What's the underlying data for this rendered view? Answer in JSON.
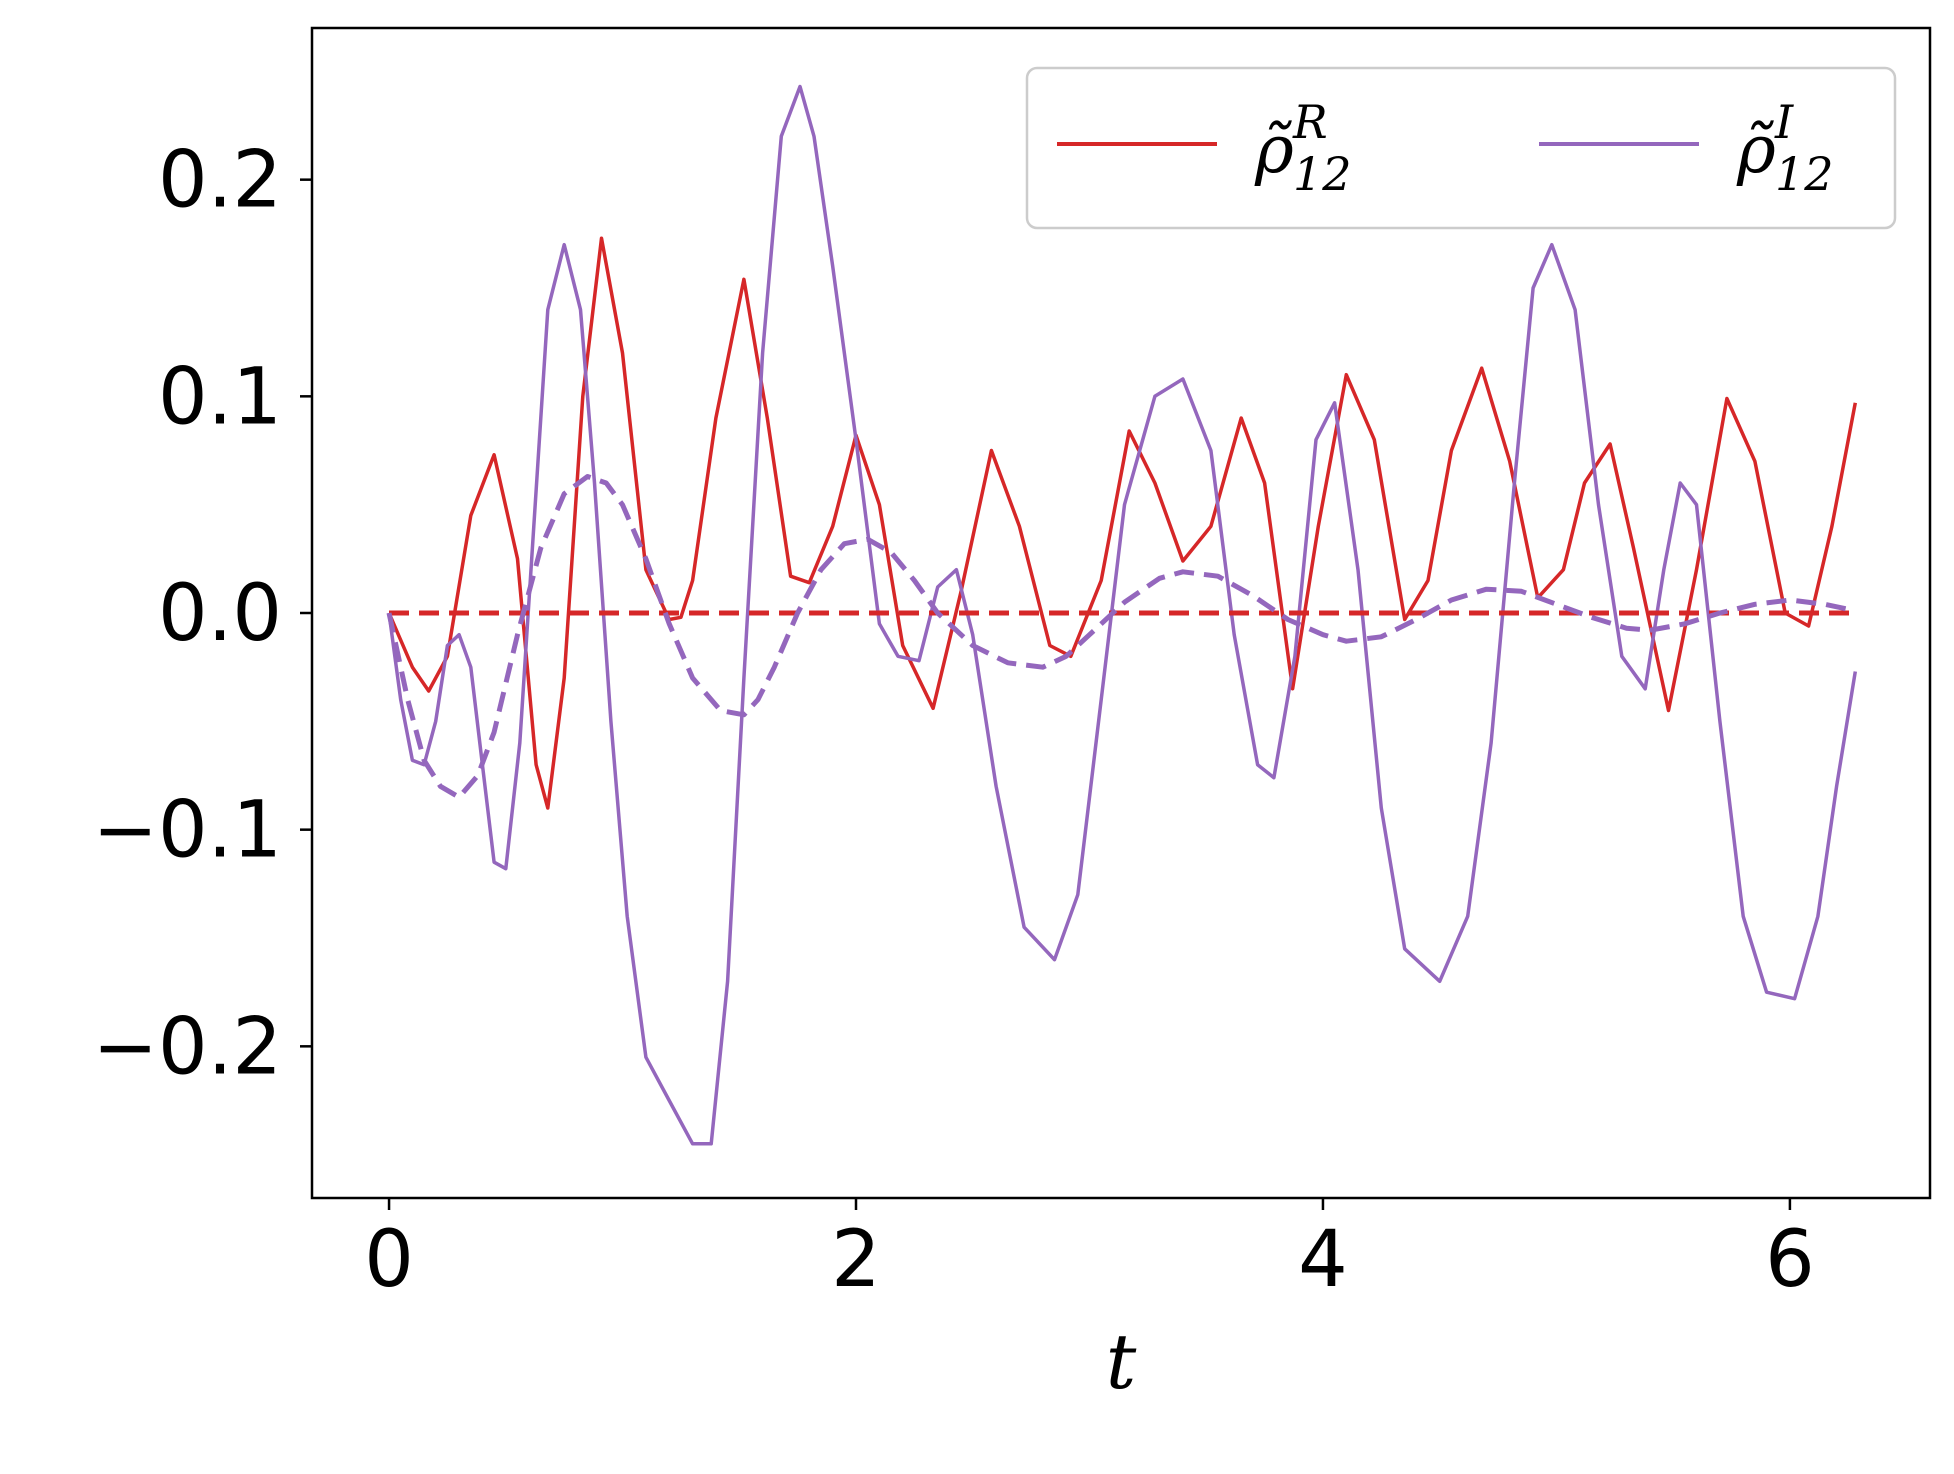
{
  "chart_data": {
    "type": "line",
    "title": "",
    "xlabel": "t",
    "ylabel": "",
    "xlim": [
      -0.33,
      6.6
    ],
    "ylim": [
      -0.27,
      0.27
    ],
    "xticks": [
      0,
      2,
      4,
      6
    ],
    "xtick_labels": [
      "0",
      "2",
      "4",
      "6"
    ],
    "yticks": [
      -0.2,
      -0.1,
      0.0,
      0.1,
      0.2
    ],
    "ytick_labels": [
      "−0.2",
      "−0.1",
      "0.0",
      "0.1",
      "0.2"
    ],
    "grid": false,
    "legend": {
      "position": "top-right",
      "columns": 2,
      "entries": [
        {
          "symbol": "ρ̃",
          "sup": "R",
          "sub": "12",
          "color": "#d62728"
        },
        {
          "symbol": "ρ̃",
          "sup": "I",
          "sub": "12",
          "color": "#9467bd"
        }
      ]
    },
    "series": [
      {
        "legend_index": 0,
        "color": "#d62728",
        "style": "solid",
        "x": [
          0,
          0.1,
          0.17,
          0.25,
          0.35,
          0.45,
          0.55,
          0.63,
          0.68,
          0.75,
          0.83,
          0.91,
          1.0,
          1.1,
          1.2,
          1.25,
          1.3,
          1.4,
          1.52,
          1.62,
          1.72,
          1.8,
          1.9,
          2.0,
          2.1,
          2.2,
          2.33,
          2.45,
          2.58,
          2.7,
          2.83,
          2.92,
          3.05,
          3.17,
          3.28,
          3.4,
          3.52,
          3.65,
          3.75,
          3.87,
          3.98,
          4.1,
          4.22,
          4.35,
          4.45,
          4.55,
          4.68,
          4.8,
          4.92,
          5.03,
          5.12,
          5.23,
          5.33,
          5.48,
          5.6,
          5.73,
          5.85,
          5.98,
          6.08,
          6.18,
          6.28
        ],
        "y": [
          0.0,
          -0.025,
          -0.036,
          -0.02,
          0.045,
          0.073,
          0.025,
          -0.07,
          -0.09,
          -0.03,
          0.1,
          0.173,
          0.12,
          0.02,
          -0.003,
          -0.002,
          0.015,
          0.09,
          0.154,
          0.09,
          0.017,
          0.014,
          0.04,
          0.082,
          0.05,
          -0.015,
          -0.044,
          0.01,
          0.075,
          0.04,
          -0.015,
          -0.02,
          0.015,
          0.084,
          0.06,
          0.024,
          0.04,
          0.09,
          0.06,
          -0.035,
          0.04,
          0.11,
          0.08,
          -0.003,
          0.015,
          0.075,
          0.113,
          0.07,
          0.007,
          0.02,
          0.06,
          0.078,
          0.03,
          -0.045,
          0.02,
          0.099,
          0.07,
          0.0,
          -0.006,
          0.04,
          0.097
        ]
      },
      {
        "legend_index": 1,
        "color": "#9467bd",
        "style": "solid",
        "x": [
          0,
          0.05,
          0.1,
          0.15,
          0.2,
          0.25,
          0.3,
          0.35,
          0.4,
          0.45,
          0.5,
          0.56,
          0.62,
          0.68,
          0.75,
          0.82,
          0.88,
          0.95,
          1.02,
          1.1,
          1.2,
          1.3,
          1.38,
          1.45,
          1.52,
          1.6,
          1.68,
          1.76,
          1.82,
          1.9,
          2.0,
          2.1,
          2.18,
          2.27,
          2.35,
          2.43,
          2.5,
          2.6,
          2.72,
          2.85,
          2.95,
          3.05,
          3.15,
          3.28,
          3.4,
          3.52,
          3.62,
          3.72,
          3.79,
          3.88,
          3.97,
          4.05,
          4.15,
          4.25,
          4.35,
          4.5,
          4.62,
          4.72,
          4.82,
          4.9,
          4.98,
          5.08,
          5.18,
          5.28,
          5.38,
          5.46,
          5.53,
          5.6,
          5.7,
          5.8,
          5.9,
          6.02,
          6.12,
          6.2,
          6.28
        ],
        "y": [
          0.0,
          -0.04,
          -0.068,
          -0.07,
          -0.05,
          -0.015,
          -0.01,
          -0.025,
          -0.07,
          -0.115,
          -0.118,
          -0.06,
          0.04,
          0.14,
          0.17,
          0.14,
          0.06,
          -0.05,
          -0.14,
          -0.205,
          -0.225,
          -0.245,
          -0.245,
          -0.17,
          -0.03,
          0.12,
          0.22,
          0.243,
          0.22,
          0.16,
          0.08,
          -0.005,
          -0.02,
          -0.022,
          0.012,
          0.02,
          -0.01,
          -0.08,
          -0.145,
          -0.16,
          -0.13,
          -0.04,
          0.05,
          0.1,
          0.108,
          0.075,
          -0.01,
          -0.07,
          -0.076,
          -0.02,
          0.08,
          0.097,
          0.02,
          -0.09,
          -0.155,
          -0.17,
          -0.14,
          -0.06,
          0.06,
          0.15,
          0.17,
          0.14,
          0.05,
          -0.02,
          -0.035,
          0.02,
          0.06,
          0.05,
          -0.05,
          -0.14,
          -0.175,
          -0.178,
          -0.14,
          -0.08,
          -0.027
        ]
      },
      {
        "legend_index": 0,
        "color": "#d62728",
        "style": "dashed",
        "x": [
          0,
          6.28
        ],
        "y": [
          0.0,
          0.0
        ]
      },
      {
        "legend_index": 1,
        "color": "#9467bd",
        "style": "dashed",
        "x": [
          0,
          0.08,
          0.15,
          0.22,
          0.3,
          0.38,
          0.45,
          0.55,
          0.65,
          0.75,
          0.85,
          0.93,
          1.0,
          1.1,
          1.2,
          1.3,
          1.42,
          1.52,
          1.58,
          1.65,
          1.75,
          1.85,
          1.95,
          2.05,
          2.15,
          2.25,
          2.35,
          2.5,
          2.65,
          2.8,
          2.9,
          3.0,
          3.15,
          3.3,
          3.4,
          3.55,
          3.7,
          3.85,
          4.0,
          4.1,
          4.25,
          4.4,
          4.55,
          4.7,
          4.85,
          5.0,
          5.15,
          5.3,
          5.4,
          5.55,
          5.7,
          5.85,
          6.0,
          6.15,
          6.28
        ],
        "y": [
          0.0,
          -0.04,
          -0.068,
          -0.08,
          -0.085,
          -0.075,
          -0.055,
          -0.01,
          0.03,
          0.055,
          0.063,
          0.06,
          0.05,
          0.025,
          -0.005,
          -0.03,
          -0.045,
          -0.047,
          -0.04,
          -0.025,
          0.0,
          0.02,
          0.032,
          0.034,
          0.028,
          0.015,
          0.0,
          -0.015,
          -0.023,
          -0.025,
          -0.02,
          -0.01,
          0.005,
          0.016,
          0.019,
          0.017,
          0.008,
          -0.003,
          -0.01,
          -0.013,
          -0.011,
          -0.003,
          0.006,
          0.011,
          0.01,
          0.004,
          -0.002,
          -0.007,
          -0.008,
          -0.005,
          0.0,
          0.004,
          0.006,
          0.004,
          0.001
        ]
      }
    ]
  }
}
